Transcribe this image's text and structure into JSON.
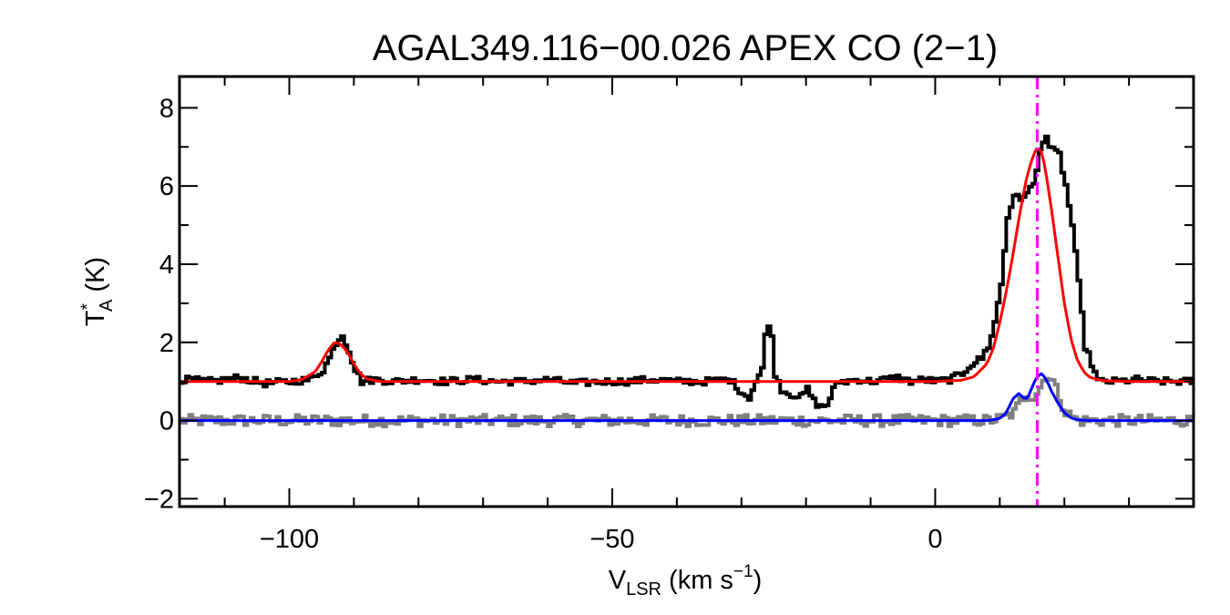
{
  "chart_data": {
    "type": "line",
    "title": "AGAL349.116−00.026  APEX CO (2−1)",
    "xlabel": {
      "main": "V",
      "sub": "LSR",
      "unit_prefix": " (km s",
      "unit_sup": "−1",
      "unit_suffix": ")"
    },
    "ylabel": {
      "main": "T",
      "sup": "*",
      "sub": "A",
      "unit": " (K)"
    },
    "xlim": [
      -117,
      40
    ],
    "ylim": [
      -2.2,
      8.8
    ],
    "x_ticks": [
      -100,
      -50,
      0
    ],
    "x_tick_labels": [
      "−100",
      "−50",
      "0"
    ],
    "y_ticks": [
      -2,
      0,
      2,
      4,
      6,
      8
    ],
    "y_tick_labels": [
      "−2",
      "0",
      "2",
      "4",
      "6",
      "8"
    ],
    "grid": false,
    "legend": "none",
    "vline": {
      "x": 15.8,
      "style": "dash-dot",
      "color": "#ff00ff"
    },
    "series": [
      {
        "role": "observed-spectrum",
        "color": "#000000",
        "render": "step",
        "x": [
          -117,
          -112,
          -108,
          -104,
          -100,
          -97,
          -95,
          -94,
          -93,
          -92,
          -91,
          -90,
          -89,
          -87,
          -84,
          -80,
          -76,
          -72,
          -68,
          -64,
          -60,
          -56,
          -52,
          -48,
          -44,
          -40,
          -36,
          -32,
          -30,
          -29,
          -28,
          -27,
          -26.5,
          -26,
          -25.5,
          -25,
          -24,
          -23,
          -22,
          -21,
          -20,
          -19,
          -18,
          -17,
          -16,
          -15,
          -14,
          -12,
          -10,
          -8,
          -6,
          -4,
          -2,
          0,
          2,
          4,
          5,
          6,
          7,
          8,
          9,
          10,
          11,
          12,
          13,
          14,
          15,
          15.5,
          16,
          16.5,
          17,
          17.5,
          18,
          19,
          20,
          21,
          22,
          23,
          25,
          28,
          31,
          34,
          37,
          40
        ],
        "y": [
          1.05,
          1.0,
          1.1,
          0.95,
          1.0,
          1.05,
          1.3,
          1.6,
          2.0,
          2.2,
          1.8,
          1.3,
          1.0,
          1.05,
          1.0,
          1.05,
          1.0,
          1.05,
          1.0,
          1.0,
          1.05,
          0.95,
          1.0,
          1.0,
          1.05,
          1.0,
          1.0,
          1.05,
          0.7,
          0.6,
          1.0,
          1.3,
          2.2,
          2.5,
          2.1,
          1.2,
          0.8,
          0.7,
          0.65,
          0.6,
          0.8,
          0.5,
          0.35,
          0.4,
          0.8,
          1.0,
          1.0,
          1.05,
          1.0,
          1.05,
          1.1,
          1.0,
          1.05,
          1.0,
          1.05,
          1.2,
          1.4,
          1.5,
          1.6,
          1.9,
          2.5,
          3.5,
          5.2,
          5.8,
          5.6,
          5.9,
          6.0,
          6.4,
          6.9,
          7.2,
          7.3,
          7.0,
          6.9,
          6.8,
          6.0,
          5.0,
          3.5,
          1.9,
          1.0,
          1.0,
          1.05,
          1.0,
          1.0,
          1.0
        ]
      },
      {
        "role": "residual",
        "color": "#808080",
        "render": "step-noise",
        "x": [
          -117,
          8,
          10,
          12,
          13,
          14,
          15,
          16,
          17,
          18,
          19,
          20,
          22,
          40
        ],
        "y": [
          0.0,
          0.0,
          0.05,
          0.2,
          0.5,
          0.7,
          0.6,
          0.85,
          1.2,
          1.0,
          0.6,
          0.2,
          0.0,
          0.0
        ]
      },
      {
        "role": "fit-model",
        "color": "#ff0000",
        "render": "line",
        "x": [
          -117,
          -105,
          -100,
          -98,
          -96,
          -95,
          -94,
          -93,
          -92,
          -91,
          -90,
          -89,
          -88,
          -86,
          -80,
          -60,
          -40,
          -20,
          0,
          4,
          6,
          8,
          9,
          10,
          11,
          12,
          13,
          14,
          15,
          15.8,
          16.5,
          17,
          18,
          19,
          20,
          21,
          22,
          23,
          24,
          26,
          30,
          40
        ],
        "y": [
          1.0,
          1.0,
          1.0,
          1.05,
          1.25,
          1.5,
          1.8,
          2.0,
          1.95,
          1.75,
          1.45,
          1.2,
          1.07,
          1.0,
          1.0,
          1.0,
          1.0,
          1.0,
          1.0,
          1.03,
          1.12,
          1.45,
          1.85,
          2.5,
          3.3,
          4.2,
          5.2,
          6.1,
          6.7,
          7.0,
          6.85,
          6.5,
          5.4,
          4.2,
          3.0,
          2.1,
          1.55,
          1.25,
          1.1,
          1.02,
          1.0,
          1.0
        ]
      },
      {
        "role": "fit-model-secondary",
        "color": "#0000ff",
        "render": "line",
        "x": [
          -117,
          -40,
          0,
          8,
          10,
          11,
          12,
          13,
          13.5,
          14,
          14.5,
          15,
          15.5,
          16,
          16.5,
          17,
          17.5,
          18,
          19,
          20,
          21,
          22,
          24,
          40
        ],
        "y": [
          0.0,
          0.0,
          0.0,
          0.0,
          0.05,
          0.2,
          0.55,
          0.7,
          0.6,
          0.55,
          0.65,
          0.85,
          1.05,
          1.15,
          1.2,
          1.1,
          0.95,
          0.75,
          0.45,
          0.2,
          0.07,
          0.02,
          0.0,
          0.0
        ]
      }
    ]
  }
}
